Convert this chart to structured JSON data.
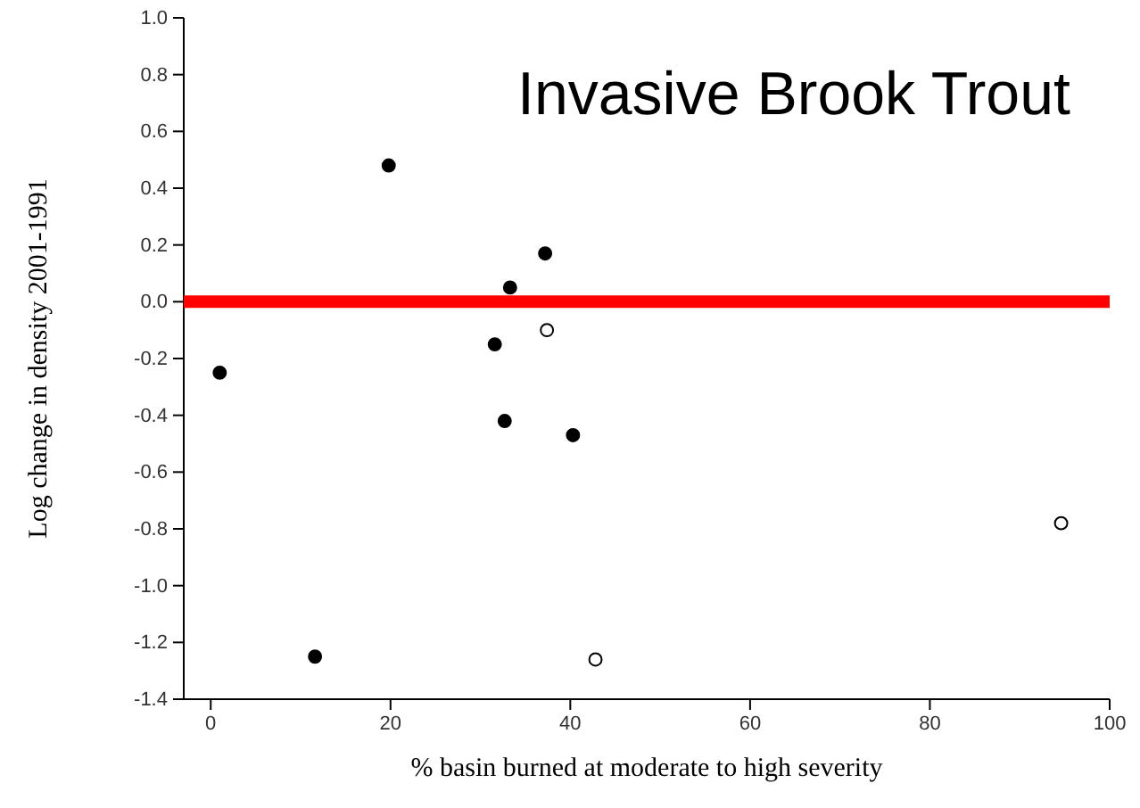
{
  "chart_data": {
    "type": "scatter",
    "title": "Invasive Brook Trout",
    "xlabel": "% basin burned at moderate to high severity",
    "ylabel": "Log change in density 2001-1991",
    "series": [
      {
        "color": "#000000",
        "x": [
          1,
          19.8,
          11.6,
          37.2,
          33.3,
          31.6,
          32.7,
          40.3
        ],
        "values": [
          -0.25,
          0.48,
          -1.25,
          0.17,
          0.05,
          -0.15,
          -0.42,
          -0.47
        ]
      },
      {
        "color": "#ffffff",
        "x": [
          37.4,
          42.8,
          94.6
        ],
        "values": [
          -0.1,
          -1.26,
          -0.78
        ]
      }
    ],
    "xlim": [
      -3,
      100
    ],
    "xticks": [
      0,
      20,
      40,
      60,
      80,
      100
    ],
    "ylim": [
      -1.4,
      1.0
    ],
    "yticks": [
      {
        "value": -1.4,
        "label": "-1.4"
      },
      {
        "value": -1.2,
        "label": "-1.2"
      },
      {
        "value": -1.0,
        "label": "-1.0"
      },
      {
        "value": -0.8,
        "label": "-0.8"
      },
      {
        "value": -0.6,
        "label": "-0.6"
      },
      {
        "value": -0.4,
        "label": "-0.4"
      },
      {
        "value": -0.2,
        "label": "-0.2"
      },
      {
        "value": 0,
        "label": "0.0"
      },
      {
        "value": 0.2,
        "label": "0.2"
      },
      {
        "value": 0.4,
        "label": "0.4"
      },
      {
        "value": 0.6,
        "label": "0.6"
      },
      {
        "value": 0.8,
        "label": "0.8"
      },
      {
        "value": 1.0,
        "label": "1.0"
      }
    ],
    "ref_lines": [
      {
        "axis": "y",
        "value": 0,
        "color": "#ff0000"
      }
    ],
    "marker": "circle"
  }
}
